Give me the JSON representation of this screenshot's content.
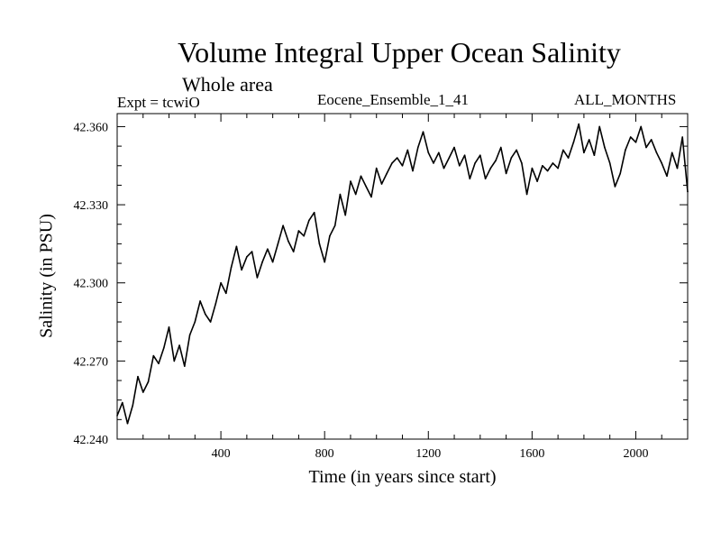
{
  "chart_data": {
    "type": "line",
    "title": "Volume Integral Upper Ocean Salinity",
    "subtitle": "Whole area",
    "annotations": {
      "left": "Expt = tcwiO",
      "center": "Eocene_Ensemble_1_41",
      "right": "ALL_MONTHS"
    },
    "xlabel": "Time (in years since start)",
    "ylabel": "Salinity (in PSU)",
    "xlim": [
      0,
      2200
    ],
    "ylim": [
      42.24,
      42.365
    ],
    "xticks": [
      400,
      800,
      1200,
      1600,
      2000
    ],
    "xtick_labels": [
      "400",
      "800",
      "1200",
      "1600",
      "2000"
    ],
    "yticks": [
      42.24,
      42.27,
      42.3,
      42.33,
      42.36
    ],
    "ytick_labels": [
      "42.240",
      "42.270",
      "42.300",
      "42.330",
      "42.360"
    ],
    "grid": false,
    "series": [
      {
        "color": "#000000",
        "x": [
          0,
          20,
          40,
          60,
          80,
          100,
          120,
          140,
          160,
          180,
          200,
          220,
          240,
          260,
          280,
          300,
          320,
          340,
          360,
          380,
          400,
          420,
          440,
          460,
          480,
          500,
          520,
          540,
          560,
          580,
          600,
          620,
          640,
          660,
          680,
          700,
          720,
          740,
          760,
          780,
          800,
          820,
          840,
          860,
          880,
          900,
          920,
          940,
          960,
          980,
          1000,
          1020,
          1040,
          1060,
          1080,
          1100,
          1120,
          1140,
          1160,
          1180,
          1200,
          1220,
          1240,
          1260,
          1280,
          1300,
          1320,
          1340,
          1360,
          1380,
          1400,
          1420,
          1440,
          1460,
          1480,
          1500,
          1520,
          1540,
          1560,
          1580,
          1600,
          1620,
          1640,
          1660,
          1680,
          1700,
          1720,
          1740,
          1760,
          1780,
          1800,
          1820,
          1840,
          1860,
          1880,
          1900,
          1920,
          1940,
          1960,
          1980,
          2000,
          2020,
          2040,
          2060,
          2080,
          2100,
          2120,
          2140,
          2160,
          2180,
          2200
        ],
        "y": [
          42.249,
          42.254,
          42.246,
          42.253,
          42.264,
          42.258,
          42.262,
          42.272,
          42.269,
          42.275,
          42.283,
          42.27,
          42.276,
          42.268,
          42.28,
          42.285,
          42.293,
          42.288,
          42.285,
          42.292,
          42.3,
          42.296,
          42.306,
          42.314,
          42.305,
          42.31,
          42.312,
          42.302,
          42.308,
          42.313,
          42.308,
          42.315,
          42.322,
          42.316,
          42.312,
          42.32,
          42.318,
          42.324,
          42.327,
          42.315,
          42.308,
          42.318,
          42.322,
          42.334,
          42.326,
          42.339,
          42.334,
          42.341,
          42.337,
          42.333,
          42.344,
          42.338,
          42.342,
          42.346,
          42.348,
          42.345,
          42.351,
          42.343,
          42.352,
          42.358,
          42.35,
          42.346,
          42.35,
          42.344,
          42.348,
          42.352,
          42.345,
          42.349,
          42.34,
          42.346,
          42.349,
          42.34,
          42.344,
          42.347,
          42.352,
          42.342,
          42.348,
          42.351,
          42.346,
          42.334,
          42.344,
          42.339,
          42.345,
          42.343,
          42.346,
          42.344,
          42.351,
          42.348,
          42.354,
          42.361,
          42.35,
          42.355,
          42.349,
          42.36,
          42.352,
          42.346,
          42.337,
          42.342,
          42.351,
          42.356,
          42.354,
          42.36,
          42.352,
          42.355,
          42.35,
          42.346,
          42.341,
          42.35,
          42.344,
          42.356,
          42.335
        ]
      }
    ]
  }
}
